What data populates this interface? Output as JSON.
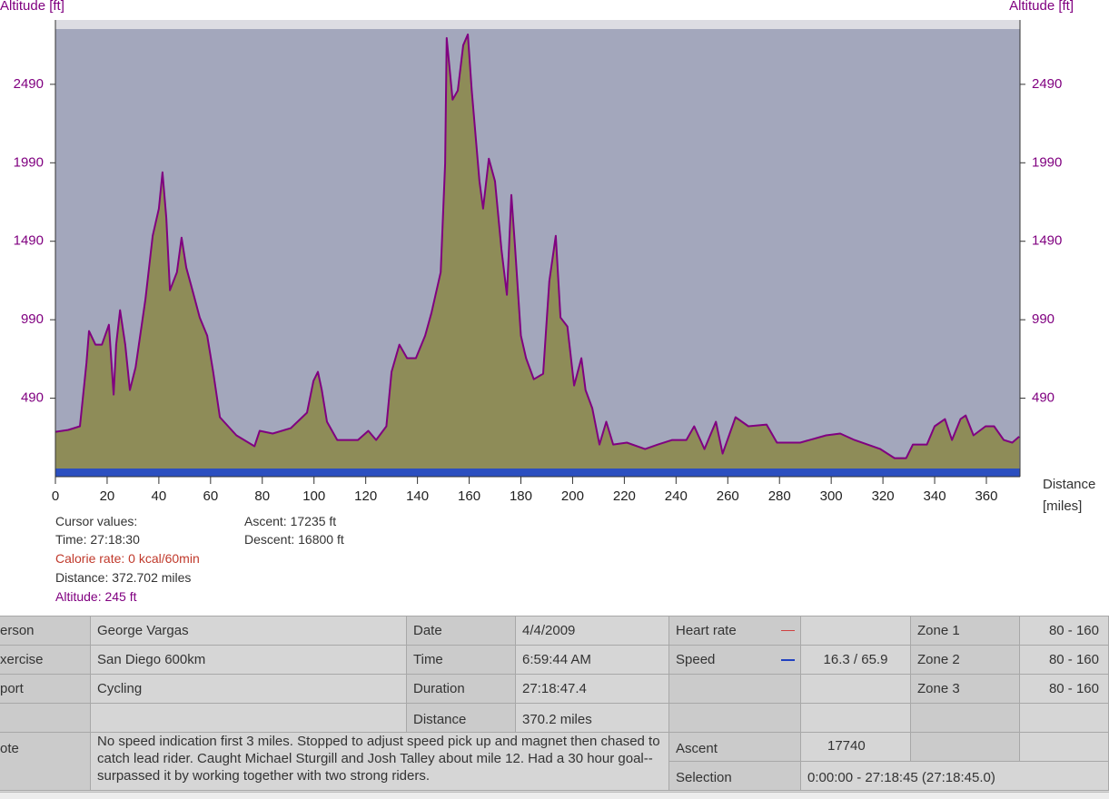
{
  "chart_data": {
    "type": "area",
    "y_title": "Altitude [ft]",
    "y2_title": "Altitude [ft]",
    "x_title": "Distance [miles]",
    "x": [
      0,
      5,
      9.5,
      12,
      13,
      15.5,
      18,
      20.7,
      22.5,
      23.5,
      25,
      27,
      28.8,
      31,
      34.8,
      37.6,
      40,
      41.4,
      42.9,
      44.3,
      47,
      48.8,
      50.6,
      53,
      55.8,
      58.7,
      61,
      63.6,
      70,
      77,
      79,
      84,
      91,
      97.3,
      99.8,
      101.5,
      103,
      105,
      109,
      117,
      121,
      124,
      128,
      130,
      133,
      136,
      139.4,
      143,
      145.4,
      149,
      150.7,
      151.3,
      153.6,
      155.6,
      157.7,
      159.5,
      161,
      164,
      165.4,
      167.6,
      170,
      172.5,
      174.6,
      176.3,
      177.7,
      180,
      182,
      185,
      188.6,
      191,
      193.5,
      195.3,
      198,
      200.6,
      203.4,
      205,
      207.6,
      210.4,
      213,
      215.7,
      221,
      228,
      233,
      238.5,
      244,
      247,
      251,
      255.4,
      258,
      263,
      268,
      275,
      279,
      288,
      298,
      303.5,
      309,
      319,
      324.5,
      329,
      331.6,
      337,
      340,
      344,
      346.7,
      350,
      352,
      355,
      359.7,
      363,
      366.7,
      370,
      372.7
    ],
    "values": [
      276,
      288,
      311,
      715,
      918,
      831,
      831,
      958,
      513,
      831,
      1051,
      831,
      542,
      687,
      1120,
      1525,
      1698,
      1929,
      1640,
      1178,
      1293,
      1513,
      1322,
      1178,
      1004,
      889,
      658,
      369,
      253,
      184,
      282,
      265,
      299,
      398,
      600,
      658,
      542,
      340,
      224,
      224,
      282,
      224,
      311,
      658,
      831,
      745,
      745,
      889,
      1033,
      1293,
      1987,
      2785,
      2392,
      2450,
      2739,
      2808,
      2450,
      1872,
      1698,
      2016,
      1872,
      1438,
      1149,
      1785,
      1467,
      889,
      745,
      611,
      646,
      1236,
      1525,
      1004,
      947,
      571,
      745,
      542,
      426,
      195,
      340,
      195,
      207,
      166,
      195,
      224,
      224,
      311,
      166,
      340,
      137,
      369,
      311,
      322,
      207,
      207,
      253,
      265,
      224,
      166,
      108,
      108,
      195,
      195,
      311,
      357,
      224,
      357,
      380,
      253,
      311,
      311,
      224,
      207,
      245
    ],
    "line_color": "#800080",
    "fill_color": "#8e8c58",
    "xlim": [
      0,
      373
    ],
    "xticks": [
      0,
      20,
      40,
      60,
      80,
      100,
      120,
      140,
      160,
      180,
      200,
      220,
      240,
      260,
      280,
      300,
      320,
      340,
      360
    ],
    "ylim": [
      -10,
      2900
    ],
    "yticks": [
      490,
      990,
      1490,
      1990,
      2490
    ],
    "y2lim": [
      -10,
      2900
    ],
    "y2ticks": [
      490,
      990,
      1490,
      1990,
      2490
    ]
  },
  "cursor": {
    "title": "Cursor values:",
    "time": "Time: 27:18:30",
    "calorie": "Calorie rate: 0 kcal/60min",
    "distance": "Distance: 372.702 miles",
    "altitude": "Altitude: 245 ft",
    "ascent": "Ascent: 17235 ft",
    "descent": "Descent: 16800 ft"
  },
  "table": {
    "rows": [
      {
        "label": "erson",
        "value": "George Vargas",
        "label2": "Date",
        "value2": "4/4/2009",
        "label3": "Heart rate",
        "label4": "Zone 1",
        "value4": "80 - 160"
      },
      {
        "label": "xercise",
        "value": "San Diego 600km",
        "label2": "Time",
        "value2": "6:59:44 AM",
        "label3": "Speed",
        "value3": "16.3 / 65.9",
        "label4": "Zone 2",
        "value4": "80 - 160"
      },
      {
        "label": "port",
        "value": "Cycling",
        "label2": "Duration",
        "value2": "27:18:47.4",
        "label4": "Zone 3",
        "value4": "80 - 160"
      },
      {
        "label2": "Distance",
        "value2": "370.2 miles"
      }
    ],
    "note": {
      "label": "ote",
      "value": "No speed indication first 3 miles.  Stopped to adjust speed pick up and magnet then chased to catch lead rider.  Caught Michael Sturgill and Josh Talley about mile 12. Had a 30 hour goal--surpassed it by working together with two strong riders."
    },
    "ascent": {
      "label": "Ascent",
      "value": "17740"
    },
    "selection": {
      "label": "Selection",
      "value": "0:00:00 - 27:18:45 (27:18:45.0)"
    }
  }
}
